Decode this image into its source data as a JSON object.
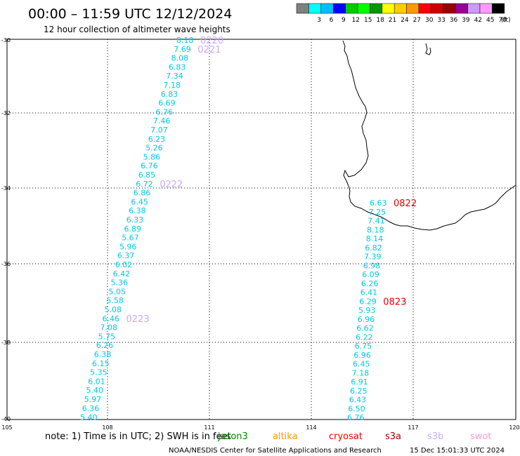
{
  "header": {
    "title": "00:00 – 11:59 UTC 12/12/2024",
    "subtitle": "12 hour collection of altimeter wave heights"
  },
  "legend": {
    "unit": "(ft)",
    "bins": [
      {
        "color": "#808080",
        "label": ""
      },
      {
        "color": "#00ffff",
        "label": "3"
      },
      {
        "color": "#00bfff",
        "label": "6"
      },
      {
        "color": "#0000ff",
        "label": "9"
      },
      {
        "color": "#00cc00",
        "label": "12"
      },
      {
        "color": "#00ff00",
        "label": "15"
      },
      {
        "color": "#009900",
        "label": "18"
      },
      {
        "color": "#ffff00",
        "label": "21"
      },
      {
        "color": "#ffcc00",
        "label": "24"
      },
      {
        "color": "#ff9900",
        "label": "27"
      },
      {
        "color": "#ff0000",
        "label": "30"
      },
      {
        "color": "#cc0000",
        "label": "33"
      },
      {
        "color": "#990000",
        "label": "36"
      },
      {
        "color": "#990099",
        "label": "39"
      },
      {
        "color": "#cc99ff",
        "label": "42"
      },
      {
        "color": "#ff99ff",
        "label": "45"
      },
      {
        "color": "#000000",
        "label": "70"
      }
    ]
  },
  "axes": {
    "lat_labels": [
      "-30",
      "-32",
      "-34",
      "-36",
      "-38",
      "-40"
    ],
    "lon_labels": [
      "105",
      "108",
      "111",
      "114",
      "117",
      "120"
    ]
  },
  "track_colors": {
    "values": "#00c8e6",
    "time_west": "#c8aaff",
    "time_east": "#e60000"
  },
  "tracks": {
    "west": {
      "values": [
        "8.18",
        "7.69",
        "8.08",
        "6.83",
        "7.34",
        "7.18",
        "6.83",
        "6.69",
        "6.76",
        "7.46",
        "7.07",
        "6.23",
        "5.26",
        "5.86",
        "6.76",
        "6.85",
        "6.72",
        "6.86",
        "6.45",
        "6.38",
        "6.33",
        "6.89",
        "5.67",
        "5.96",
        "6.37",
        "6.02",
        "6.42",
        "5.36",
        "5.05",
        "5.58",
        "5.08",
        "6.46",
        "7.08",
        "5.75",
        "6.26",
        "6.38",
        "6.15",
        "5.35",
        "6.01",
        "5.40",
        "5.97",
        "6.36",
        "5.40"
      ],
      "times": [
        {
          "label": "0220",
          "value_index": 0
        },
        {
          "label": "0221",
          "value_index": 1
        },
        {
          "label": "0222",
          "value_index": 16
        },
        {
          "label": "0223",
          "value_index": 31
        }
      ]
    },
    "east": {
      "values": [
        "6.63",
        "7.25",
        "7.41",
        "8.18",
        "8.14",
        "6.82",
        "7.39",
        "6.98",
        "6.09",
        "6.26",
        "6.41",
        "6.29",
        "5.93",
        "6.96",
        "6.62",
        "6.22",
        "6.75",
        "6.96",
        "6.45",
        "7.18",
        "6.91",
        "6.25",
        "6.43",
        "6.50",
        "6.76"
      ],
      "times": [
        {
          "label": "0822",
          "value_index": 0
        },
        {
          "label": "0823",
          "value_index": 11
        }
      ]
    }
  },
  "footer": {
    "note": "note: 1) Time is in UTC; 2) SWH is in feet",
    "satellites": [
      {
        "name": "jason3",
        "color": "#008800"
      },
      {
        "name": "altika",
        "color": "#ff9900"
      },
      {
        "name": "cryosat",
        "color": "#ee0000"
      },
      {
        "name": "s3a",
        "color": "#aa0000"
      },
      {
        "name": "s3b",
        "color": "#c8aaff"
      },
      {
        "name": "swot",
        "color": "#ff99dd"
      }
    ],
    "credit": "NOAA/NESDIS Center for Satellite Applications and Research",
    "timestamp": "15 Dec 15:01:33 UTC 2024"
  }
}
